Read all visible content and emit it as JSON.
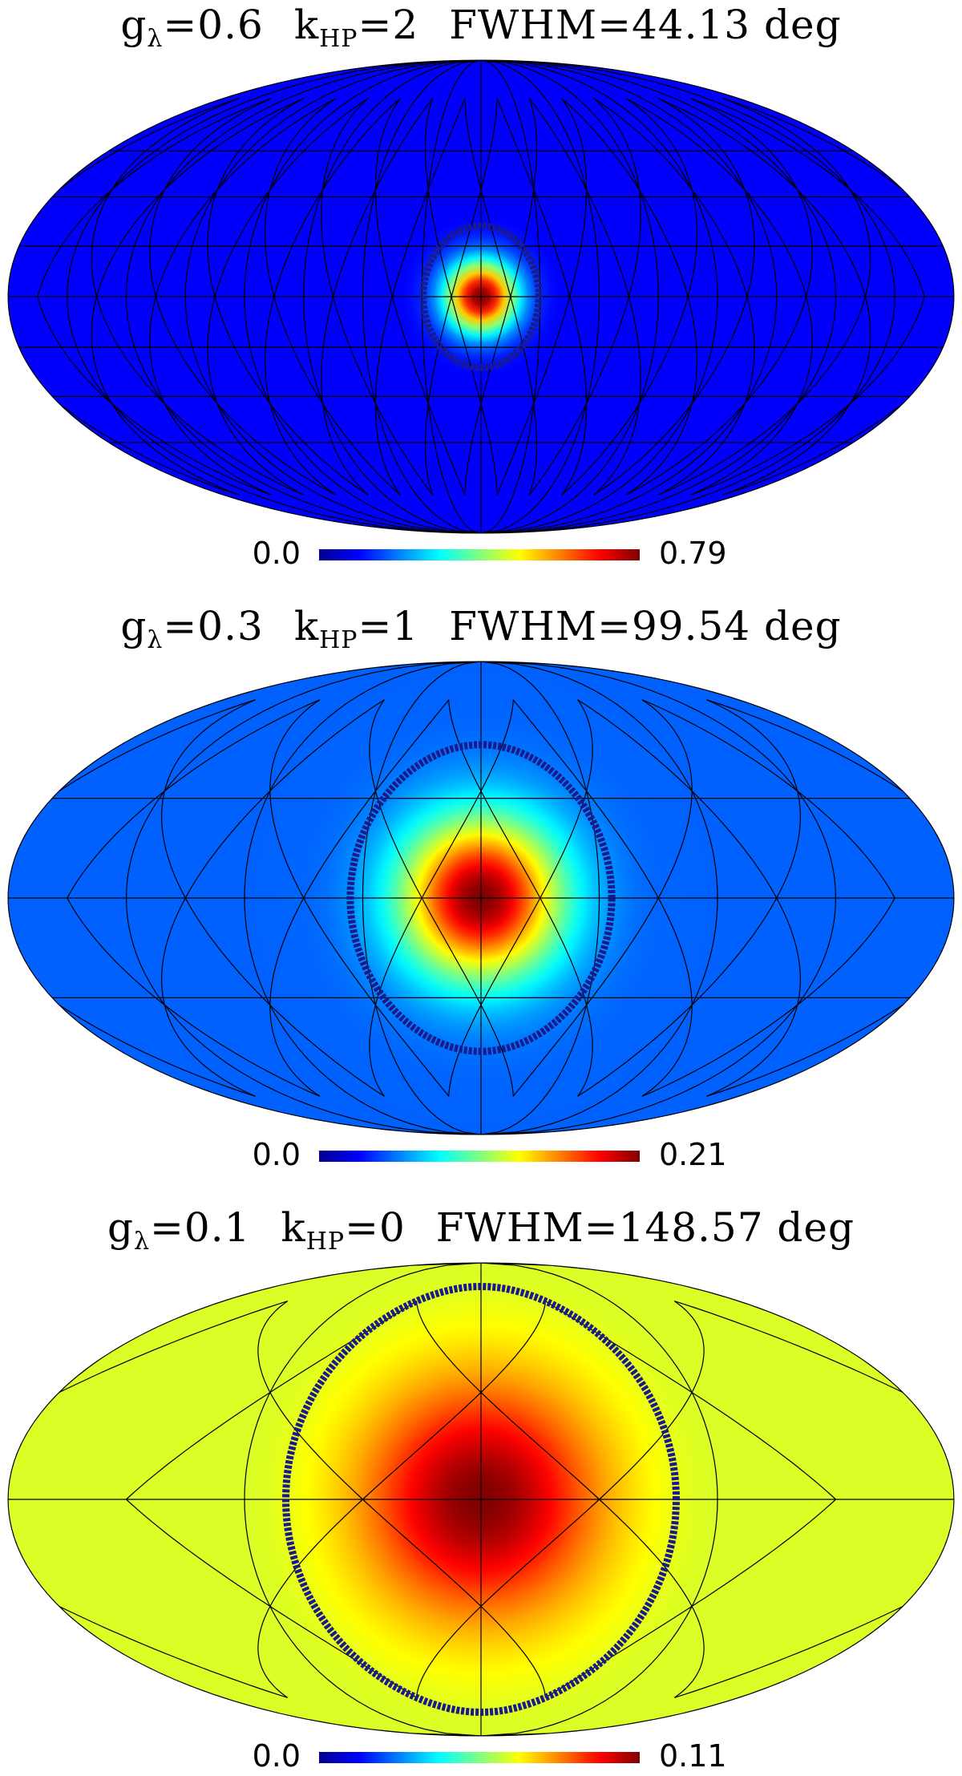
{
  "chart_data": [
    {
      "type": "heatmap",
      "projection": "mollweide",
      "title": {
        "g_label": "g",
        "g_sub": "λ",
        "g_value": "=0.6",
        "k_label": "k",
        "k_sub": "HP",
        "k_value": "=2",
        "fwhm": "FWHM=44.13 deg"
      },
      "g_lambda": 0.6,
      "k_HP": 2,
      "fwhm_deg": 44.13,
      "colorbar": {
        "min": 0.0,
        "max": 0.79,
        "min_label": "0.0",
        "max_label": "0.79"
      },
      "peak_value": 0.79,
      "grid": "on"
    },
    {
      "type": "heatmap",
      "projection": "mollweide",
      "title": {
        "g_label": "g",
        "g_sub": "λ",
        "g_value": "=0.3",
        "k_label": "k",
        "k_sub": "HP",
        "k_value": "=1",
        "fwhm": "FWHM=99.54 deg"
      },
      "g_lambda": 0.3,
      "k_HP": 1,
      "fwhm_deg": 99.54,
      "colorbar": {
        "min": 0.0,
        "max": 0.21,
        "min_label": "0.0",
        "max_label": "0.21"
      },
      "peak_value": 0.21,
      "grid": "on"
    },
    {
      "type": "heatmap",
      "projection": "mollweide",
      "title": {
        "g_label": "g",
        "g_sub": "λ",
        "g_value": "=0.1",
        "k_label": "k",
        "k_sub": "HP",
        "k_value": "=0",
        "fwhm": "FWHM=148.57 deg"
      },
      "g_lambda": 0.1,
      "k_HP": 0,
      "fwhm_deg": 148.57,
      "colorbar": {
        "min": 0.0,
        "max": 0.11,
        "min_label": "0.0",
        "max_label": "0.11"
      },
      "peak_value": 0.11,
      "grid": "on"
    }
  ],
  "colormap": [
    "#00008f",
    "#0000ff",
    "#0080ff",
    "#00ffff",
    "#80ff80",
    "#ffff00",
    "#ff8000",
    "#ff0000",
    "#800000"
  ],
  "ring_color": "#1a1a8c"
}
